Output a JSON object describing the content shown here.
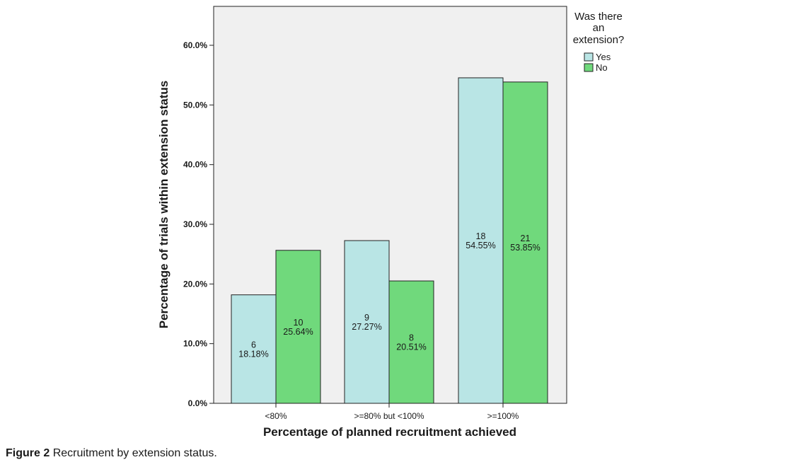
{
  "chart_data": {
    "type": "bar",
    "categories": [
      "<80%",
      ">=80% but <100%",
      ">=100%"
    ],
    "series": [
      {
        "name": "Yes",
        "color": "#b9e5e5",
        "values": [
          18.18,
          27.27,
          54.55
        ],
        "counts": [
          "6",
          "9",
          "18"
        ],
        "labels": [
          "18.18%",
          "27.27%",
          "54.55%"
        ]
      },
      {
        "name": "No",
        "color": "#70d97c",
        "values": [
          25.64,
          20.51,
          53.85
        ],
        "counts": [
          "10",
          "8",
          "21"
        ],
        "labels": [
          "25.64%",
          "20.51%",
          "53.85%"
        ]
      }
    ],
    "xlabel": "Percentage of planned recruitment achieved",
    "ylabel": "Percentage of trials within extension status",
    "ylim": [
      0,
      60
    ],
    "yticks": [
      0,
      10,
      20,
      30,
      40,
      50,
      60
    ],
    "ytick_labels": [
      "0.0%",
      "10.0%",
      "20.0%",
      "30.0%",
      "40.0%",
      "50.0%",
      "60.0%"
    ],
    "legend": {
      "title_lines": [
        "Was there",
        "an",
        "extension?"
      ],
      "position": "right"
    },
    "plot_background": "#f0f0f0",
    "grid": false
  },
  "caption": {
    "label": "Figure 2",
    "text": "Recruitment by extension status."
  }
}
